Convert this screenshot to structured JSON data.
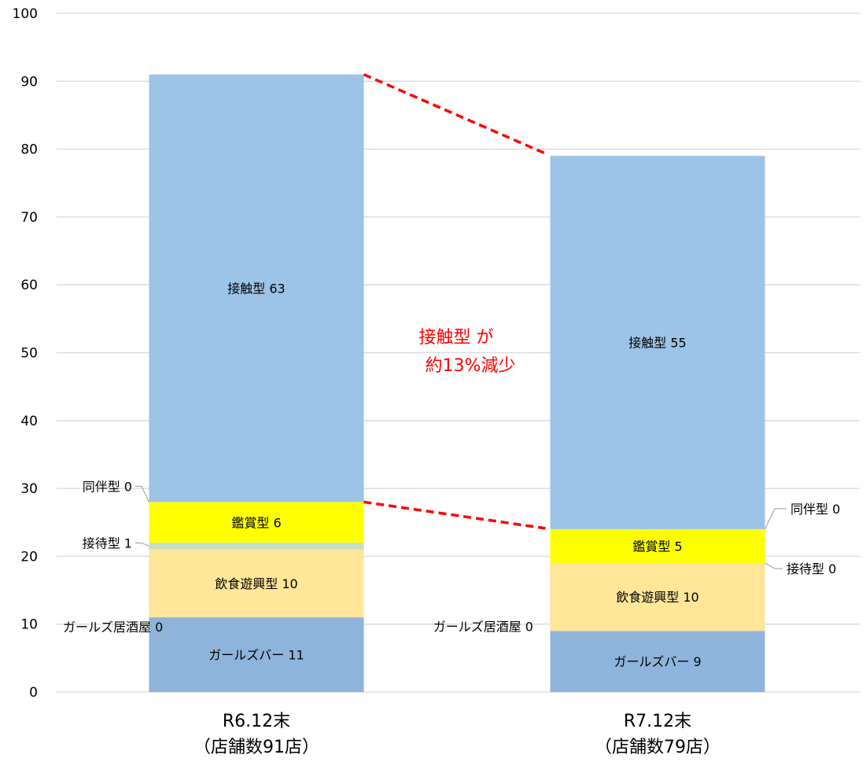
{
  "chart_data": {
    "type": "bar",
    "stacked": true,
    "categories": [
      [
        "R6.12末",
        "（店舗数91店）"
      ],
      [
        "R7.12末",
        "（店舗数79店）"
      ]
    ],
    "ylim": [
      0,
      100
    ],
    "y_ticks": [
      0,
      10,
      20,
      30,
      40,
      50,
      60,
      70,
      80,
      90,
      100
    ],
    "grid": true,
    "series": [
      {
        "name": "ガールズバー",
        "values": [
          11,
          9
        ],
        "color": "#8EB4DC"
      },
      {
        "name": "ガールズ居酒屋",
        "values": [
          0,
          0
        ],
        "color": "#C5D7EE"
      },
      {
        "name": "飲食遊興型",
        "values": [
          10,
          10
        ],
        "color": "#FFE699"
      },
      {
        "name": "接待型",
        "values": [
          1,
          0
        ],
        "color": "#C3DFC3"
      },
      {
        "name": "鑑賞型",
        "values": [
          6,
          5
        ],
        "color": "#FFFF00"
      },
      {
        "name": "同伴型",
        "values": [
          0,
          0
        ],
        "color": "#D9D9D9"
      },
      {
        "name": "接触型",
        "values": [
          63,
          55
        ],
        "color": "#9DC3E6"
      }
    ],
    "data_labels": [
      [
        "ガールズバー 11",
        "ガールズバー 9"
      ],
      [
        "ガールズ居酒屋 0",
        "ガールズ居酒屋 0"
      ],
      [
        "飲食遊興型 10",
        "飲食遊興型 10"
      ],
      [
        "接待型 1",
        "接待型 0"
      ],
      [
        "鑑賞型 6",
        "鑑賞型 5"
      ],
      [
        "同伴型 0",
        "同伴型 0"
      ],
      [
        "接触型 63",
        "接触型 55"
      ]
    ],
    "annotation": {
      "lines": [
        "接触型 が",
        "約13%減少"
      ],
      "color": "#FF0000"
    },
    "connector_color": "#FF0000"
  }
}
